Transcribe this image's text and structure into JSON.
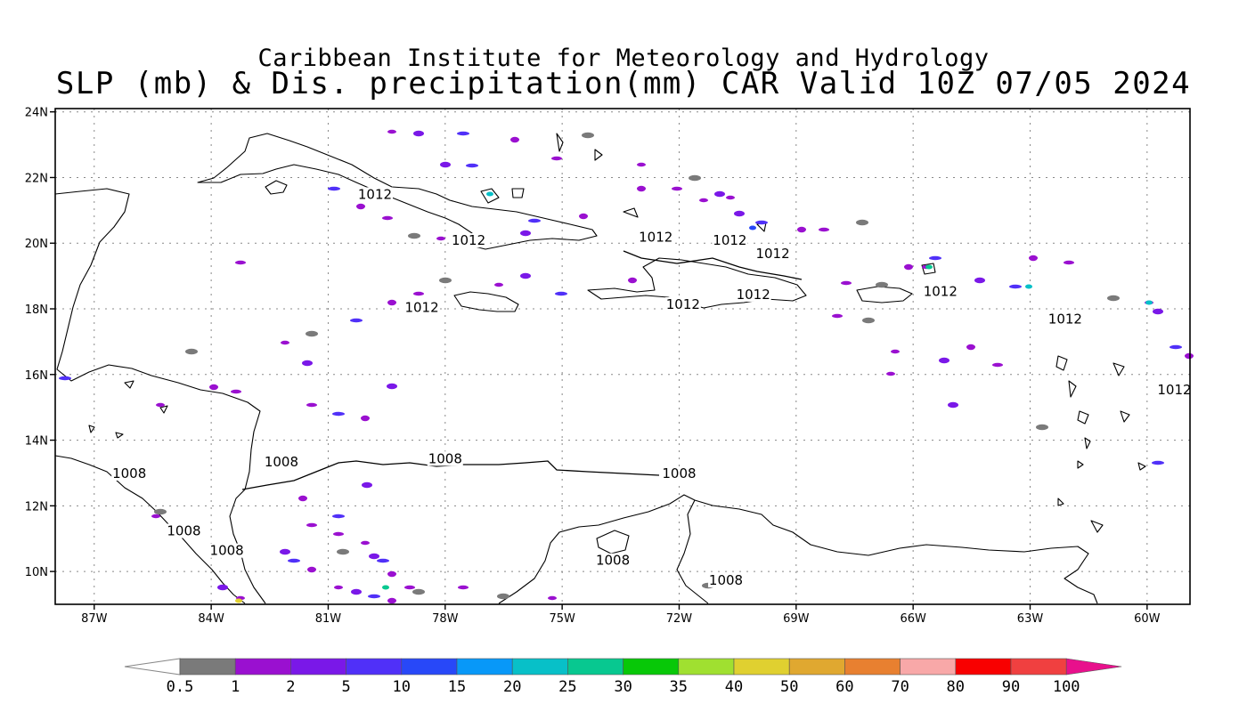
{
  "header": {
    "line1": "Caribbean Institute for Meteorology and Hydrology",
    "line2": "SLP (mb) & Dis. precipitation(mm) CAR Valid 10Z 07/05 2024"
  },
  "map": {
    "lon_ticks": [
      {
        "label": "87W",
        "lon": -87
      },
      {
        "label": "84W",
        "lon": -84
      },
      {
        "label": "81W",
        "lon": -81
      },
      {
        "label": "78W",
        "lon": -78
      },
      {
        "label": "75W",
        "lon": -75
      },
      {
        "label": "72W",
        "lon": -72
      },
      {
        "label": "69W",
        "lon": -69
      },
      {
        "label": "66W",
        "lon": -66
      },
      {
        "label": "63W",
        "lon": -63
      },
      {
        "label": "60W",
        "lon": -60
      }
    ],
    "lat_ticks": [
      {
        "label": "24N",
        "lat": 24
      },
      {
        "label": "22N",
        "lat": 22
      },
      {
        "label": "20N",
        "lat": 20
      },
      {
        "label": "18N",
        "lat": 18
      },
      {
        "label": "16N",
        "lat": 16
      },
      {
        "label": "14N",
        "lat": 14
      },
      {
        "label": "12N",
        "lat": 12
      },
      {
        "label": "10N",
        "lat": 10
      }
    ],
    "isobar_labels": [
      {
        "text": "1012",
        "lon": -79.8,
        "lat": 21.35
      },
      {
        "text": "1012",
        "lon": -77.4,
        "lat": 19.95
      },
      {
        "text": "1012",
        "lon": -72.6,
        "lat": 20.05
      },
      {
        "text": "1012",
        "lon": -70.7,
        "lat": 19.95
      },
      {
        "text": "1012",
        "lon": -69.6,
        "lat": 19.55
      },
      {
        "text": "1012",
        "lon": -78.6,
        "lat": 17.9
      },
      {
        "text": "1012",
        "lon": -71.9,
        "lat": 18.0
      },
      {
        "text": "1012",
        "lon": -70.1,
        "lat": 18.3
      },
      {
        "text": "1012",
        "lon": -65.3,
        "lat": 18.4
      },
      {
        "text": "1012",
        "lon": -62.1,
        "lat": 17.55
      },
      {
        "text": "1012",
        "lon": -59.3,
        "lat": 15.4
      },
      {
        "text": "1008",
        "lon": -82.2,
        "lat": 13.2
      },
      {
        "text": "1008",
        "lon": -78.0,
        "lat": 13.3
      },
      {
        "text": "1008",
        "lon": -72.0,
        "lat": 12.85
      },
      {
        "text": "1008",
        "lon": -86.1,
        "lat": 12.85
      },
      {
        "text": "1008",
        "lon": -84.7,
        "lat": 11.1
      },
      {
        "text": "1008",
        "lon": -83.6,
        "lat": 10.5
      },
      {
        "text": "1008",
        "lon": -73.7,
        "lat": 10.2
      },
      {
        "text": "1008",
        "lon": -70.8,
        "lat": 9.6
      }
    ]
  },
  "colorbar": {
    "labels": [
      "0.5",
      "1",
      "2",
      "5",
      "10",
      "15",
      "20",
      "25",
      "30",
      "35",
      "40",
      "50",
      "60",
      "70",
      "80",
      "90",
      "100"
    ],
    "colors": [
      "#ffffff",
      "#7a7a7a",
      "#9a10d0",
      "#7a18e8",
      "#5030f8",
      "#2848f8",
      "#0898f8",
      "#08c0c8",
      "#08c890",
      "#08c808",
      "#a0e030",
      "#e0d030",
      "#e0a830",
      "#e88030",
      "#f8a8a8",
      "#f80000",
      "#f04040",
      "#e8108c"
    ]
  }
}
